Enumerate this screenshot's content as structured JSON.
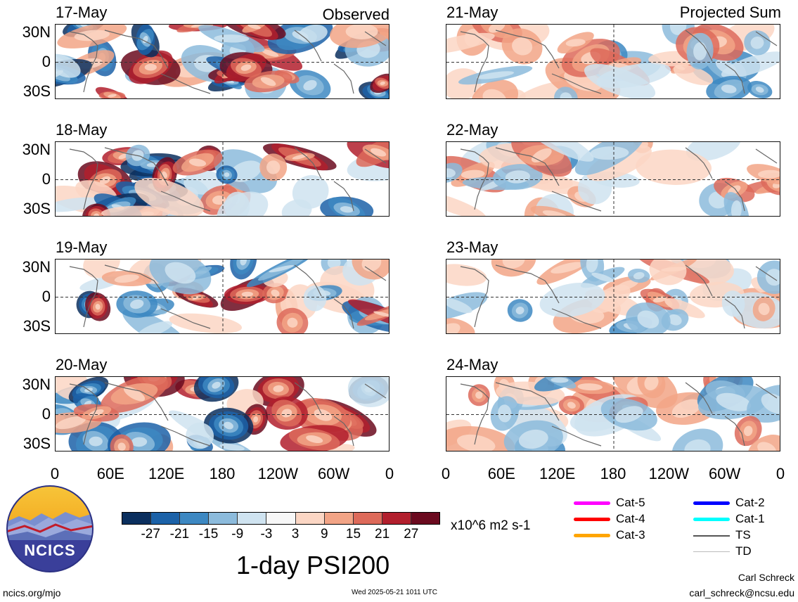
{
  "header": {
    "left_label": "Observed",
    "right_label": "Projected Sum"
  },
  "panels_left": [
    {
      "date": "17-May"
    },
    {
      "date": "18-May"
    },
    {
      "date": "19-May"
    },
    {
      "date": "20-May"
    }
  ],
  "panels_right": [
    {
      "date": "21-May"
    },
    {
      "date": "22-May"
    },
    {
      "date": "23-May"
    },
    {
      "date": "24-May"
    }
  ],
  "axes": {
    "lat_ticks": [
      "30N",
      "0",
      "30S"
    ],
    "lon_ticks": [
      "0",
      "60E",
      "120E",
      "180",
      "120W",
      "60W",
      "0"
    ]
  },
  "colorbar": {
    "colors": [
      "#0b2f5e",
      "#1c62a8",
      "#3d88c2",
      "#8cbbdc",
      "#cfe3f0",
      "#f7f7f7",
      "#fbd6c4",
      "#f2a486",
      "#dd6a5a",
      "#b21f2d",
      "#6b0a1f"
    ],
    "ticks": [
      "-27",
      "-21",
      "-15",
      "-9",
      "-3",
      "3",
      "9",
      "15",
      "21",
      "27"
    ],
    "units": "x10^6 m2 s-1"
  },
  "legend": {
    "items": [
      {
        "label": "Cat-5",
        "color": "#ff00ff"
      },
      {
        "label": "Cat-4",
        "color": "#ff0000"
      },
      {
        "label": "Cat-3",
        "color": "#ffa500"
      },
      {
        "label": "Cat-2",
        "color": "#0000ff"
      },
      {
        "label": "Cat-1",
        "color": "#00ffff"
      },
      {
        "label": "TS",
        "color": "#555555"
      },
      {
        "label": "TD",
        "color": "#bbbbbb"
      }
    ]
  },
  "footer": {
    "title": "1-day PSI200",
    "logo_text": "NCICS",
    "site": "ncics.org/mjo",
    "timestamp": "Wed 2025-05-21 1011 UTC",
    "author": "Carl Schreck",
    "email": "carl_schreck@ncsu.edu"
  }
}
